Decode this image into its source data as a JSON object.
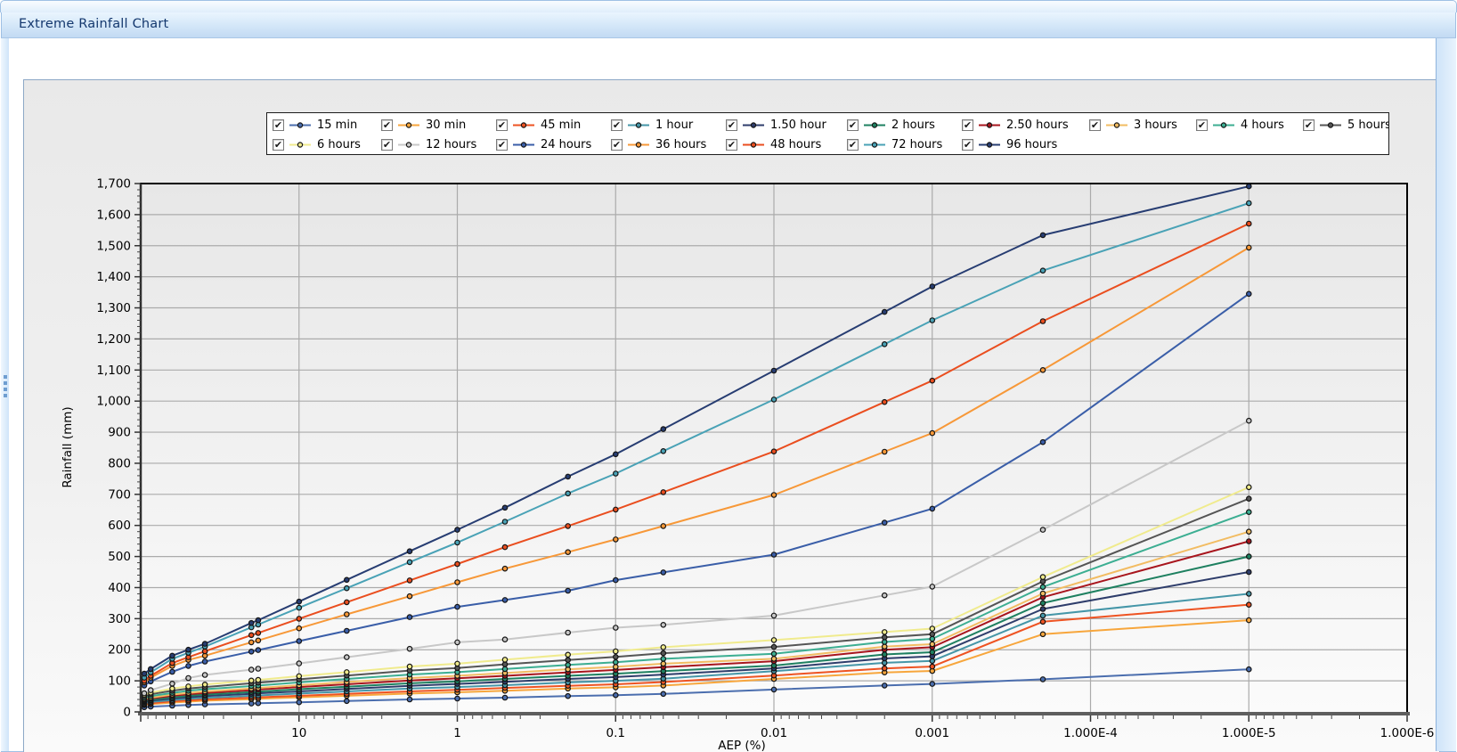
{
  "window": {
    "title": "Extreme Rainfall Chart"
  },
  "chart_data": {
    "type": "line",
    "title": "Extreme Rainfall Chart",
    "xlabel": "AEP (%)",
    "ylabel": "Rainfall (mm)",
    "x_axis": {
      "scale": "log-reversed",
      "range_left_percent": 100,
      "range_right_percent": 1e-06,
      "tick_values": [
        10,
        1,
        0.1,
        0.01,
        0.001,
        0.0001,
        1e-05,
        1e-06
      ],
      "tick_labels": [
        "10",
        "1",
        "0.1",
        "0.01",
        "0.001",
        "1.000E-4",
        "1.000E-5",
        "1.000E-6"
      ]
    },
    "y_axis": {
      "min": 0,
      "max": 1700,
      "step": 100,
      "tick_labels": [
        "0",
        "100",
        "200",
        "300",
        "400",
        "500",
        "600",
        "700",
        "800",
        "900",
        "1,000",
        "1,100",
        "1,200",
        "1,300",
        "1,400",
        "1,500",
        "1,600",
        "1,700"
      ]
    },
    "grid": "both",
    "legend_position": "top",
    "aep_percent": [
      95,
      86.5,
      63.2,
      50,
      39.3,
      20,
      18.1,
      10,
      5,
      2,
      1,
      0.5,
      0.2,
      0.1,
      0.05,
      0.01,
      0.002,
      0.001,
      0.0002,
      1e-05
    ],
    "series": [
      {
        "name": "15 min",
        "color": "#4b6eae",
        "checked": true,
        "values": [
          15,
          17,
          20,
          22,
          24,
          27,
          28,
          31,
          35,
          40,
          43,
          46,
          51,
          54,
          58,
          72,
          85,
          90,
          105,
          137
        ]
      },
      {
        "name": "30 min",
        "color": "#f7a63c",
        "checked": true,
        "values": [
          22,
          25,
          30,
          33,
          36,
          41,
          42,
          47,
          52,
          59,
          63,
          68,
          75,
          79,
          85,
          106,
          127,
          132,
          250,
          295
        ]
      },
      {
        "name": "45 min",
        "color": "#ee5322",
        "checked": true,
        "values": [
          25,
          28,
          34,
          37,
          40,
          46,
          47,
          52,
          58,
          66,
          71,
          77,
          84,
          89,
          96,
          117,
          140,
          146,
          290,
          345
        ]
      },
      {
        "name": "1 hour",
        "color": "#4596a8",
        "checked": true,
        "values": [
          28,
          32,
          38,
          42,
          45,
          52,
          53,
          59,
          66,
          75,
          80,
          86,
          95,
          100,
          107,
          131,
          158,
          164,
          310,
          380
        ]
      },
      {
        "name": "1.50 hour",
        "color": "#2e3d6b",
        "checked": true,
        "values": [
          32,
          36,
          43,
          47,
          51,
          58,
          60,
          66,
          74,
          84,
          90,
          97,
          106,
          112,
          120,
          140,
          172,
          179,
          331,
          450
        ]
      },
      {
        "name": "2 hours",
        "color": "#1e8060",
        "checked": true,
        "values": [
          35,
          39,
          47,
          52,
          56,
          64,
          65,
          73,
          81,
          92,
          98,
          106,
          116,
          123,
          131,
          149,
          185,
          192,
          350,
          500
        ]
      },
      {
        "name": "2.50 hours",
        "color": "#a8151d",
        "checked": true,
        "values": [
          38,
          43,
          52,
          57,
          61,
          70,
          72,
          80,
          89,
          101,
          108,
          116,
          127,
          135,
          144,
          163,
          200,
          208,
          369,
          549
        ]
      },
      {
        "name": "3 hours",
        "color": "#f2bc62",
        "checked": true,
        "values": [
          41,
          46,
          56,
          61,
          66,
          75,
          77,
          86,
          96,
          109,
          116,
          125,
          137,
          145,
          155,
          171,
          210,
          218,
          381,
          580
        ]
      },
      {
        "name": "4 hours",
        "color": "#3cae92",
        "checked": true,
        "values": [
          45,
          51,
          61,
          68,
          73,
          83,
          85,
          95,
          106,
          120,
          128,
          138,
          151,
          160,
          171,
          187,
          225,
          235,
          402,
          643
        ]
      },
      {
        "name": "5 hours",
        "color": "#555555",
        "checked": true,
        "values": [
          50,
          57,
          68,
          75,
          80,
          92,
          94,
          105,
          117,
          133,
          141,
          153,
          167,
          177,
          189,
          209,
          240,
          250,
          420,
          686
        ]
      },
      {
        "name": "6 hours",
        "color": "#f0eb8d",
        "checked": true,
        "values": [
          55,
          62,
          75,
          82,
          88,
          101,
          103,
          115,
          128,
          146,
          155,
          168,
          184,
          195,
          208,
          231,
          257,
          268,
          434,
          723
        ]
      },
      {
        "name": "12 hours",
        "color": "#c8c8c8",
        "checked": true,
        "values": [
          60,
          70,
          91,
          109,
          119,
          136,
          139,
          156,
          176,
          203,
          224,
          233,
          255,
          271,
          280,
          310,
          375,
          403,
          586,
          937
        ]
      },
      {
        "name": "24 hours",
        "color": "#3a5ea8",
        "checked": true,
        "values": [
          85,
          98,
          129,
          148,
          162,
          194,
          199,
          228,
          261,
          305,
          338,
          360,
          390,
          424,
          449,
          506,
          609,
          654,
          868,
          1345
        ]
      },
      {
        "name": "36 hours",
        "color": "#f79838",
        "checked": true,
        "values": [
          95,
          110,
          148,
          167,
          181,
          224,
          230,
          269,
          314,
          372,
          417,
          461,
          514,
          555,
          598,
          698,
          837,
          897,
          1100,
          1494
        ]
      },
      {
        "name": "48 hours",
        "color": "#ea4e1f",
        "checked": true,
        "values": [
          100,
          116,
          157,
          176,
          195,
          247,
          254,
          300,
          353,
          423,
          476,
          530,
          598,
          651,
          707,
          838,
          997,
          1066,
          1257,
          1571
        ]
      },
      {
        "name": "72 hours",
        "color": "#49a2b6",
        "checked": true,
        "values": [
          110,
          127,
          171,
          190,
          210,
          272,
          281,
          335,
          398,
          482,
          545,
          612,
          703,
          767,
          839,
          1005,
          1183,
          1260,
          1420,
          1637
        ]
      },
      {
        "name": "96 hours",
        "color": "#273d72",
        "checked": true,
        "values": [
          123,
          138,
          181,
          200,
          219,
          286,
          295,
          355,
          425,
          517,
          586,
          657,
          757,
          829,
          910,
          1098,
          1287,
          1369,
          1534,
          1691
        ]
      }
    ],
    "legend_rows": [
      10,
      7
    ],
    "styles": {
      "plot_bg_top": "#e8e8e8",
      "plot_bg_bottom": "#fbfbfb",
      "gridline": "#ababab",
      "axis_dark": "#2f2f2f",
      "axis_band": "#5e5e5e",
      "marker_stroke": "#151515",
      "checkmark": "✔"
    }
  }
}
